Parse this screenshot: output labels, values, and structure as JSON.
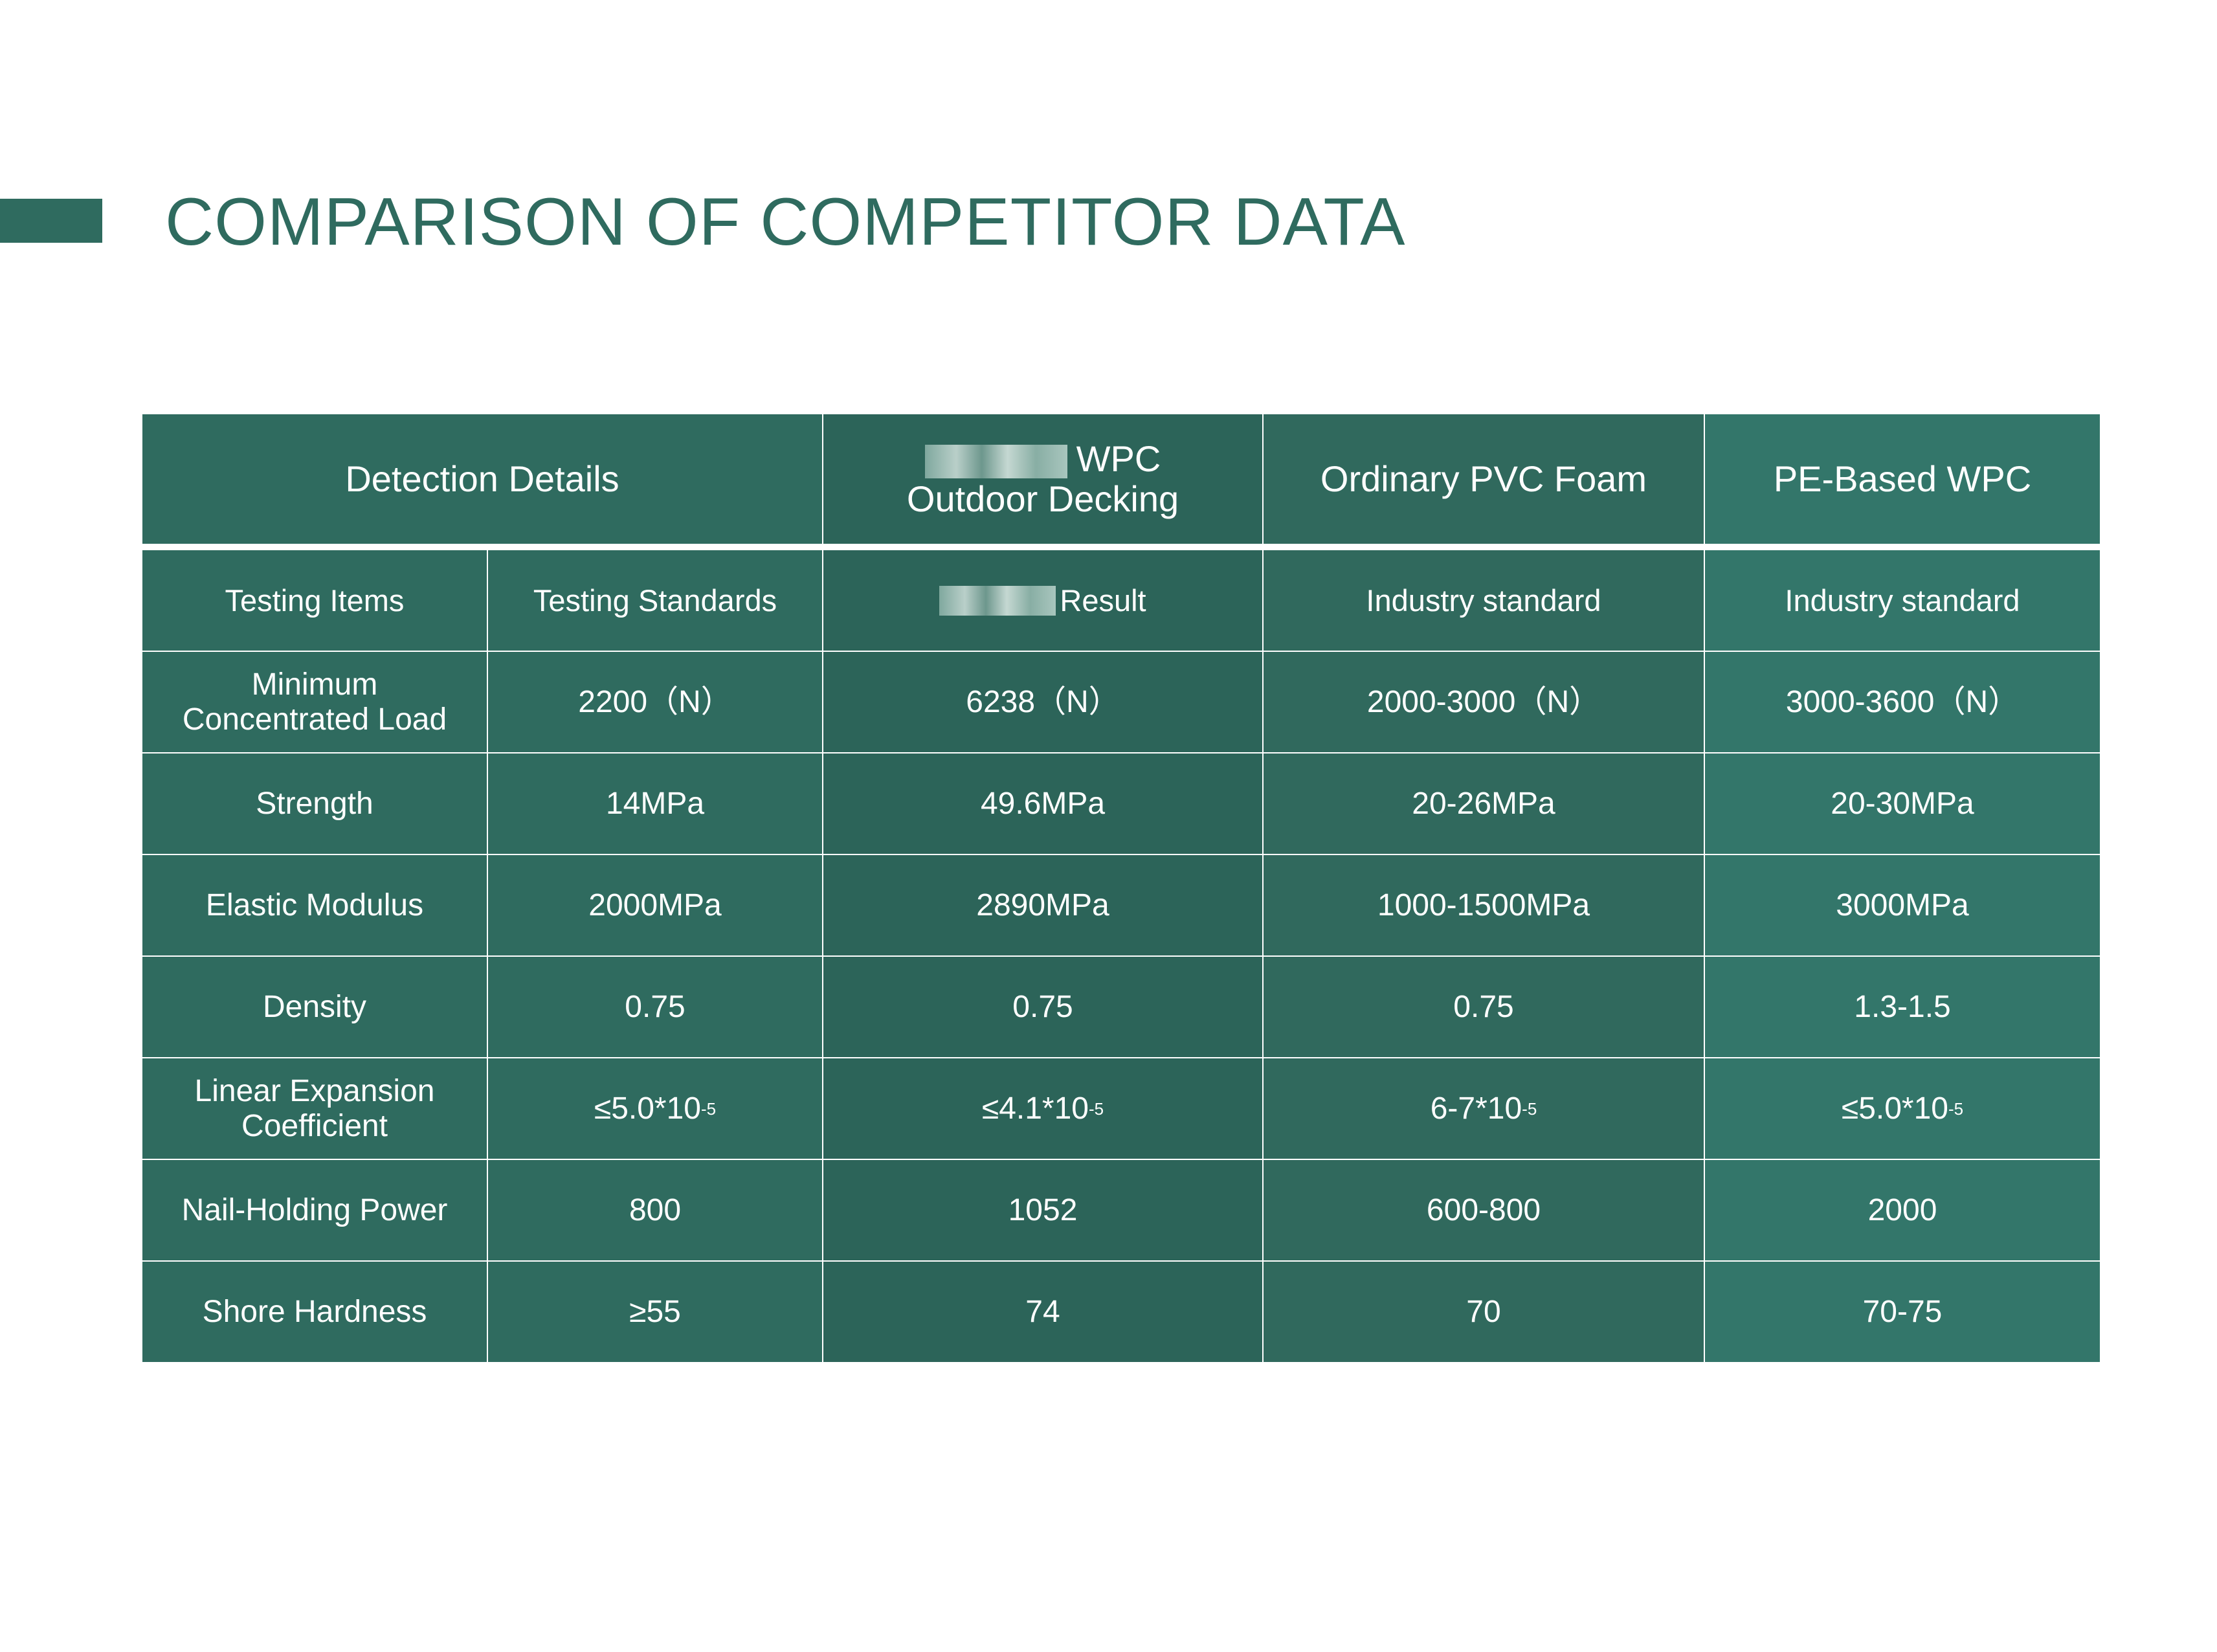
{
  "title": "COMPARISON OF COMPETITOR DATA",
  "colors": {
    "brand_green": "#2f6b5f",
    "own_column": "#2c6459",
    "pvc_column": "#30695d",
    "pe_column": "#33766a"
  },
  "header": {
    "detection_details": "Detection Details",
    "ours_line1_suffix": "WPC",
    "ours_line2": "Outdoor Decking",
    "pvc": "Ordinary PVC Foam",
    "pe": "PE-Based WPC"
  },
  "subheader": {
    "testing_items": "Testing Items",
    "testing_standards": "Testing Standards",
    "result": "Result",
    "pvc": "Industry standard",
    "pe": "Industry standard"
  },
  "rows": [
    {
      "item": "Minimum Concentrated Load",
      "standard": "2200（N）",
      "ours": "6238（N）",
      "pvc": "2000-3000（N）",
      "pe": "3000-3600（N）"
    },
    {
      "item": "Strength",
      "standard": "14MPa",
      "ours": "49.6MPa",
      "pvc": "20-26MPa",
      "pe": "20-30MPa"
    },
    {
      "item": "Elastic Modulus",
      "standard": "2000MPa",
      "ours": "2890MPa",
      "pvc": "1000-1500MPa",
      "pe": "3000MPa"
    },
    {
      "item": "Density",
      "standard": "0.75",
      "ours": "0.75",
      "pvc": "0.75",
      "pe": "1.3-1.5"
    },
    {
      "item": "Linear Expansion Coefficient",
      "standard": "≤5.0*10",
      "ours": "≤4.1*10",
      "pvc": "6-7*10",
      "pe": "≤5.0*10",
      "exponent": "-5"
    },
    {
      "item": "Nail-Holding Power",
      "standard": "800",
      "ours": "1052",
      "pvc": "600-800",
      "pe": "2000"
    },
    {
      "item": "Shore Hardness",
      "standard": "≥55",
      "ours": "74",
      "pvc": "70",
      "pe": "70-75"
    }
  ]
}
